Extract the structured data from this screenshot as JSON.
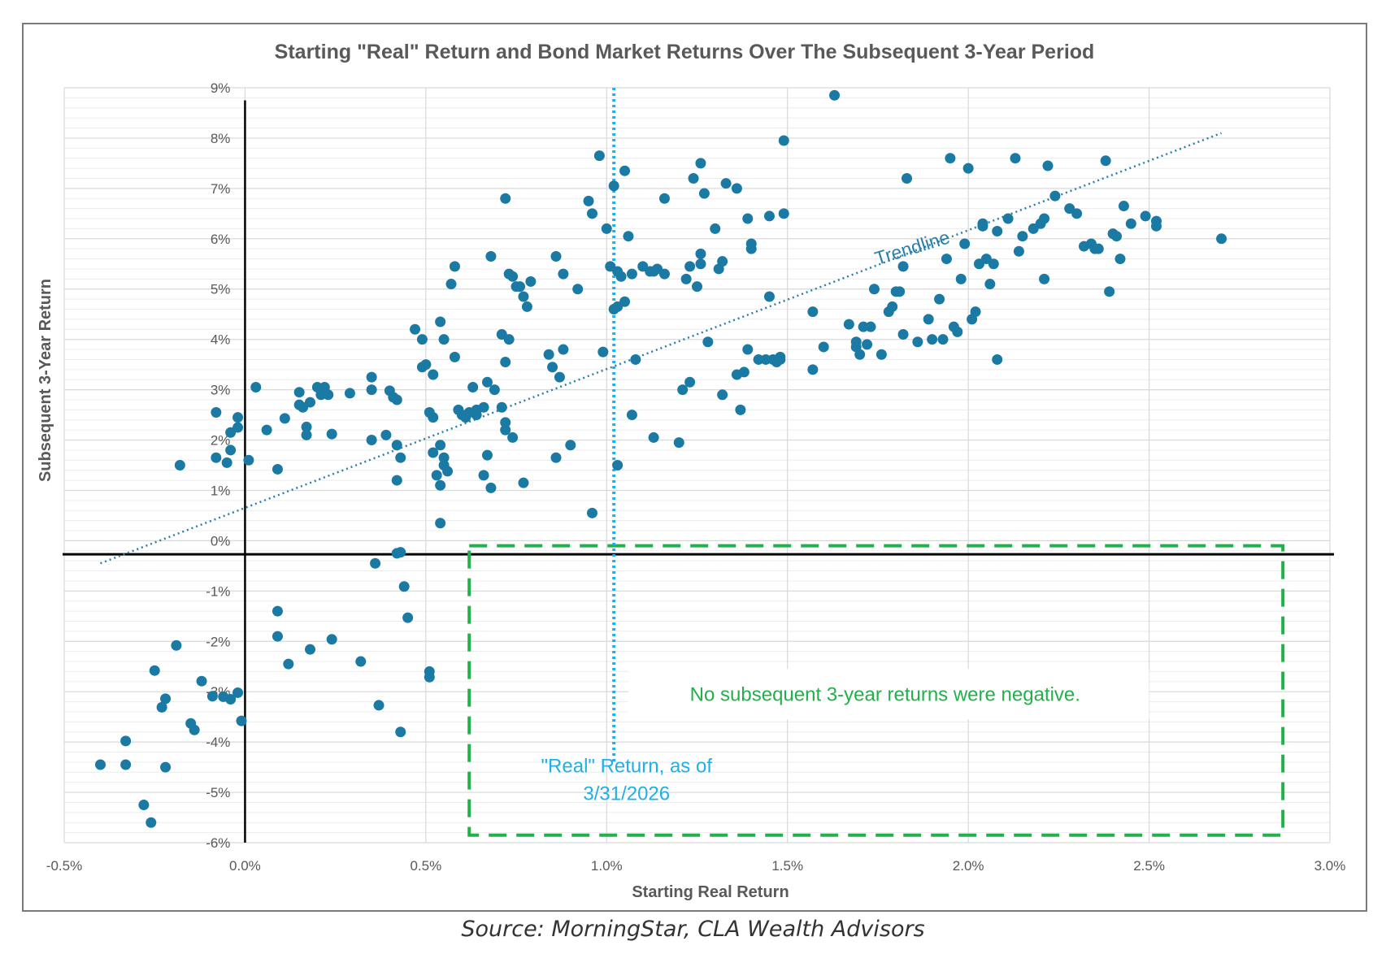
{
  "source": "Source: MorningStar, CLA Wealth Advisors",
  "colors": {
    "point": "#1a7aa3",
    "trendline": "#2a7fa8",
    "real_line": "#1eb0e8",
    "box": "#22b04a",
    "box_text": "#22b04a",
    "grid": "#d9d9d9",
    "axis": "#000000"
  },
  "chart_data": {
    "type": "scatter",
    "title": "Starting \"Real\" Return and Bond Market Returns Over The Subsequent  3-Year Period",
    "xlabel": "Starting  Real Return",
    "ylabel": "Subsequent 3-Year Return",
    "xlim": [
      -0.5,
      3.0
    ],
    "ylim": [
      -6,
      9
    ],
    "x_ticks": [
      -0.5,
      0.0,
      0.5,
      1.0,
      1.5,
      2.0,
      2.5,
      3.0
    ],
    "x_tick_labels": [
      "-0.5%",
      "0.0%",
      "0.5%",
      "1.0%",
      "1.5%",
      "2.0%",
      "2.5%",
      "3.0%"
    ],
    "y_ticks": [
      9,
      8,
      7,
      6,
      5,
      4,
      3,
      2,
      1,
      0,
      -1,
      -2,
      -3,
      -4,
      -5,
      -6
    ],
    "y_tick_labels": [
      "9%",
      "8%",
      "7%",
      "6%",
      "5%",
      "4%",
      "3%",
      "2%",
      "1%",
      "0%",
      "-1%",
      "-2%",
      "-3%",
      "-4%",
      "-5%",
      "-6%"
    ],
    "grid": true,
    "trendline": {
      "label": "Trendline",
      "x": [
        -0.4,
        2.7
      ],
      "y": [
        -0.45,
        8.1
      ]
    },
    "reference_line": {
      "x": 1.02,
      "label_lines": [
        "\"Real\" Return, as of",
        "3/31/2026"
      ]
    },
    "annotation_box": {
      "x_range": [
        0.62,
        2.87
      ],
      "y_range": [
        -5.85,
        -0.1
      ],
      "text": "No subsequent 3-year returns were negative."
    },
    "points": [
      [
        -0.4,
        -4.45
      ],
      [
        -0.33,
        -4.45
      ],
      [
        -0.33,
        -3.98
      ],
      [
        -0.28,
        -5.25
      ],
      [
        -0.26,
        -5.6
      ],
      [
        -0.25,
        -2.58
      ],
      [
        -0.23,
        -3.31
      ],
      [
        -0.22,
        -3.14
      ],
      [
        -0.22,
        -4.5
      ],
      [
        -0.19,
        -2.08
      ],
      [
        -0.15,
        -3.63
      ],
      [
        -0.14,
        -3.76
      ],
      [
        -0.12,
        -2.79
      ],
      [
        -0.09,
        -3.09
      ],
      [
        -0.06,
        -3.1
      ],
      [
        -0.04,
        -3.15
      ],
      [
        -0.02,
        -3.02
      ],
      [
        -0.01,
        -3.58
      ],
      [
        0.09,
        -1.4
      ],
      [
        0.09,
        -1.9
      ],
      [
        0.12,
        -2.45
      ],
      [
        0.18,
        -2.16
      ],
      [
        0.24,
        -1.96
      ],
      [
        0.32,
        -2.4
      ],
      [
        0.36,
        -0.45
      ],
      [
        0.37,
        -3.27
      ],
      [
        0.43,
        -3.8
      ],
      [
        0.42,
        -0.25
      ],
      [
        0.43,
        -0.23
      ],
      [
        0.44,
        -0.91
      ],
      [
        0.45,
        -1.53
      ],
      [
        0.51,
        -2.71
      ],
      [
        0.51,
        -2.6
      ],
      [
        -0.18,
        1.5
      ],
      [
        -0.08,
        2.55
      ],
      [
        -0.08,
        1.65
      ],
      [
        -0.05,
        1.55
      ],
      [
        -0.04,
        1.8
      ],
      [
        -0.04,
        2.15
      ],
      [
        -0.02,
        2.45
      ],
      [
        -0.02,
        2.25
      ],
      [
        0.01,
        1.6
      ],
      [
        0.03,
        3.05
      ],
      [
        0.06,
        2.2
      ],
      [
        0.09,
        1.42
      ],
      [
        0.11,
        2.43
      ],
      [
        0.15,
        2.95
      ],
      [
        0.15,
        2.7
      ],
      [
        0.16,
        2.65
      ],
      [
        0.17,
        2.26
      ],
      [
        0.17,
        2.1
      ],
      [
        0.18,
        2.75
      ],
      [
        0.2,
        3.05
      ],
      [
        0.21,
        2.9
      ],
      [
        0.22,
        3.05
      ],
      [
        0.23,
        2.9
      ],
      [
        0.24,
        2.12
      ],
      [
        0.29,
        2.93
      ],
      [
        0.35,
        3.25
      ],
      [
        0.35,
        3.0
      ],
      [
        0.35,
        2.0
      ],
      [
        0.39,
        2.1
      ],
      [
        0.4,
        2.98
      ],
      [
        0.41,
        2.85
      ],
      [
        0.42,
        2.8
      ],
      [
        0.42,
        1.9
      ],
      [
        0.42,
        1.2
      ],
      [
        0.43,
        1.65
      ],
      [
        0.47,
        4.2
      ],
      [
        0.49,
        4.0
      ],
      [
        0.49,
        3.45
      ],
      [
        0.5,
        3.5
      ],
      [
        0.51,
        2.55
      ],
      [
        0.52,
        2.45
      ],
      [
        0.52,
        1.75
      ],
      [
        0.52,
        3.3
      ],
      [
        0.53,
        1.3
      ],
      [
        0.54,
        1.1
      ],
      [
        0.54,
        1.9
      ],
      [
        0.54,
        4.35
      ],
      [
        0.55,
        4.0
      ],
      [
        0.55,
        1.5
      ],
      [
        0.55,
        1.65
      ],
      [
        0.56,
        1.38
      ],
      [
        0.54,
        0.35
      ],
      [
        0.57,
        5.1
      ],
      [
        0.58,
        5.45
      ],
      [
        0.58,
        3.65
      ],
      [
        0.59,
        2.6
      ],
      [
        0.6,
        2.5
      ],
      [
        0.61,
        2.45
      ],
      [
        0.62,
        2.55
      ],
      [
        0.63,
        3.05
      ],
      [
        0.64,
        2.6
      ],
      [
        0.64,
        2.5
      ],
      [
        0.66,
        2.65
      ],
      [
        0.66,
        1.3
      ],
      [
        0.67,
        3.15
      ],
      [
        0.67,
        1.7
      ],
      [
        0.68,
        1.05
      ],
      [
        0.68,
        5.65
      ],
      [
        0.69,
        3.0
      ],
      [
        0.71,
        4.1
      ],
      [
        0.71,
        2.65
      ],
      [
        0.72,
        3.55
      ],
      [
        0.72,
        2.35
      ],
      [
        0.72,
        2.2
      ],
      [
        0.72,
        6.8
      ],
      [
        0.73,
        4.0
      ],
      [
        0.73,
        5.3
      ],
      [
        0.74,
        2.05
      ],
      [
        0.74,
        5.25
      ],
      [
        0.75,
        5.05
      ],
      [
        0.76,
        5.05
      ],
      [
        0.77,
        4.85
      ],
      [
        0.77,
        1.15
      ],
      [
        0.78,
        4.65
      ],
      [
        0.79,
        5.15
      ],
      [
        0.84,
        3.7
      ],
      [
        0.85,
        3.45
      ],
      [
        0.86,
        1.65
      ],
      [
        0.86,
        5.65
      ],
      [
        0.87,
        3.25
      ],
      [
        0.88,
        5.3
      ],
      [
        0.88,
        3.8
      ],
      [
        0.9,
        1.9
      ],
      [
        0.92,
        5.0
      ],
      [
        0.95,
        6.75
      ],
      [
        0.96,
        6.5
      ],
      [
        0.96,
        0.55
      ],
      [
        0.98,
        7.65
      ],
      [
        0.99,
        3.75
      ],
      [
        1.0,
        6.2
      ],
      [
        1.01,
        5.45
      ],
      [
        1.02,
        7.05
      ],
      [
        1.02,
        4.6
      ],
      [
        1.03,
        4.65
      ],
      [
        1.03,
        5.35
      ],
      [
        1.04,
        5.25
      ],
      [
        1.05,
        7.35
      ],
      [
        1.05,
        4.75
      ],
      [
        1.03,
        1.5
      ],
      [
        1.06,
        6.05
      ],
      [
        1.07,
        2.5
      ],
      [
        1.07,
        5.3
      ],
      [
        1.08,
        3.6
      ],
      [
        1.1,
        5.45
      ],
      [
        1.12,
        5.35
      ],
      [
        1.13,
        5.35
      ],
      [
        1.13,
        2.05
      ],
      [
        1.14,
        5.4
      ],
      [
        1.16,
        5.3
      ],
      [
        1.16,
        6.8
      ],
      [
        1.2,
        1.95
      ],
      [
        1.21,
        3.0
      ],
      [
        1.22,
        5.2
      ],
      [
        1.23,
        3.15
      ],
      [
        1.23,
        5.45
      ],
      [
        1.24,
        7.2
      ],
      [
        1.25,
        5.05
      ],
      [
        1.26,
        7.5
      ],
      [
        1.26,
        5.7
      ],
      [
        1.26,
        5.5
      ],
      [
        1.27,
        6.9
      ],
      [
        1.28,
        3.95
      ],
      [
        1.3,
        6.2
      ],
      [
        1.31,
        5.4
      ],
      [
        1.32,
        5.55
      ],
      [
        1.32,
        2.9
      ],
      [
        1.33,
        7.1
      ],
      [
        1.36,
        7.0
      ],
      [
        1.36,
        3.3
      ],
      [
        1.37,
        2.6
      ],
      [
        1.38,
        3.35
      ],
      [
        1.39,
        6.4
      ],
      [
        1.39,
        3.8
      ],
      [
        1.4,
        5.9
      ],
      [
        1.4,
        5.8
      ],
      [
        1.42,
        3.6
      ],
      [
        1.44,
        3.6
      ],
      [
        1.45,
        4.85
      ],
      [
        1.45,
        6.45
      ],
      [
        1.46,
        3.6
      ],
      [
        1.47,
        3.55
      ],
      [
        1.48,
        3.6
      ],
      [
        1.48,
        3.65
      ],
      [
        1.49,
        6.5
      ],
      [
        1.49,
        7.95
      ],
      [
        1.57,
        3.4
      ],
      [
        1.57,
        4.55
      ],
      [
        1.6,
        3.85
      ],
      [
        1.63,
        8.85
      ],
      [
        1.67,
        4.3
      ],
      [
        1.69,
        3.95
      ],
      [
        1.69,
        3.85
      ],
      [
        1.7,
        3.7
      ],
      [
        1.71,
        4.25
      ],
      [
        1.72,
        3.9
      ],
      [
        1.73,
        4.25
      ],
      [
        1.74,
        5.0
      ],
      [
        1.76,
        3.7
      ],
      [
        1.78,
        4.55
      ],
      [
        1.79,
        4.65
      ],
      [
        1.8,
        4.95
      ],
      [
        1.81,
        4.95
      ],
      [
        1.82,
        5.45
      ],
      [
        1.82,
        4.1
      ],
      [
        1.83,
        7.2
      ],
      [
        1.86,
        3.95
      ],
      [
        1.89,
        4.4
      ],
      [
        1.9,
        4.0
      ],
      [
        1.92,
        4.8
      ],
      [
        1.93,
        4.0
      ],
      [
        1.94,
        5.6
      ],
      [
        1.95,
        7.6
      ],
      [
        1.96,
        4.25
      ],
      [
        1.97,
        4.15
      ],
      [
        1.98,
        5.2
      ],
      [
        1.99,
        5.9
      ],
      [
        2.0,
        7.4
      ],
      [
        2.01,
        4.4
      ],
      [
        2.02,
        4.55
      ],
      [
        2.03,
        5.5
      ],
      [
        2.04,
        6.25
      ],
      [
        2.04,
        6.3
      ],
      [
        2.05,
        5.6
      ],
      [
        2.06,
        5.1
      ],
      [
        2.07,
        5.5
      ],
      [
        2.08,
        6.15
      ],
      [
        2.08,
        3.6
      ],
      [
        2.11,
        6.4
      ],
      [
        2.13,
        7.6
      ],
      [
        2.14,
        5.75
      ],
      [
        2.15,
        6.05
      ],
      [
        2.18,
        6.2
      ],
      [
        2.2,
        6.3
      ],
      [
        2.21,
        6.4
      ],
      [
        2.21,
        5.2
      ],
      [
        2.22,
        7.45
      ],
      [
        2.24,
        6.85
      ],
      [
        2.28,
        6.6
      ],
      [
        2.3,
        6.5
      ],
      [
        2.32,
        5.85
      ],
      [
        2.34,
        5.9
      ],
      [
        2.35,
        5.8
      ],
      [
        2.36,
        5.8
      ],
      [
        2.38,
        7.55
      ],
      [
        2.39,
        4.95
      ],
      [
        2.4,
        6.1
      ],
      [
        2.41,
        6.05
      ],
      [
        2.42,
        5.6
      ],
      [
        2.43,
        6.65
      ],
      [
        2.45,
        6.3
      ],
      [
        2.49,
        6.45
      ],
      [
        2.52,
        6.25
      ],
      [
        2.52,
        6.35
      ],
      [
        2.7,
        6.0
      ]
    ]
  }
}
